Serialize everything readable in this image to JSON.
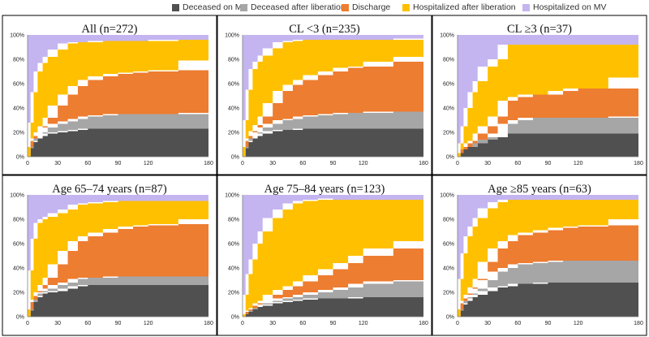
{
  "legend": {
    "items": [
      {
        "label": "Deceased on MV",
        "color": "#505050"
      },
      {
        "label": "Deceased after liberation",
        "color": "#a6a6a6"
      },
      {
        "label": "Discharge",
        "color": "#ed7d31"
      },
      {
        "label": "Hospitalized after liberation",
        "color": "#ffc000"
      },
      {
        "label": "Hospitalized on MV",
        "color": "#c4b5f0"
      }
    ]
  },
  "chart_data": [
    {
      "type": "area",
      "stacked": true,
      "title": "All (n=272)",
      "x": [
        0,
        3,
        6,
        10,
        15,
        20,
        30,
        40,
        50,
        60,
        75,
        90,
        105,
        120,
        150,
        180
      ],
      "xticks": [
        0,
        30,
        60,
        90,
        120,
        180
      ],
      "yticks": [
        "0%",
        "20%",
        "40%",
        "60%",
        "80%",
        "100%"
      ],
      "xlim": [
        0,
        180
      ],
      "ylim": [
        0,
        100
      ],
      "series": [
        {
          "name": "Deceased on MV",
          "values": [
            0,
            7,
            12,
            15,
            17,
            19,
            20,
            21,
            22,
            23,
            23,
            23,
            23,
            23,
            23,
            23
          ]
        },
        {
          "name": "Deceased after liberation",
          "values": [
            0,
            0,
            1,
            2,
            3,
            5,
            7,
            8,
            9,
            10,
            11,
            12,
            12,
            12,
            12,
            13
          ]
        },
        {
          "name": "Discharge",
          "values": [
            0,
            1,
            2,
            3,
            5,
            8,
            15,
            22,
            27,
            30,
            32,
            33,
            34,
            35,
            36,
            43
          ]
        },
        {
          "name": "Hospitalized after liberation",
          "values": [
            0,
            20,
            38,
            50,
            52,
            50,
            46,
            42,
            36,
            31,
            29,
            27,
            26,
            25,
            25,
            17
          ]
        },
        {
          "name": "Hospitalized on MV",
          "values": [
            100,
            72,
            47,
            30,
            23,
            18,
            12,
            7,
            6,
            6,
            5,
            5,
            5,
            5,
            4,
            4
          ]
        }
      ]
    },
    {
      "type": "area",
      "stacked": true,
      "title": "CL <3 (n=235)",
      "x": [
        0,
        3,
        6,
        10,
        15,
        20,
        30,
        40,
        50,
        60,
        75,
        90,
        105,
        120,
        150,
        180
      ],
      "xticks": [
        0,
        30,
        60,
        90,
        120,
        180
      ],
      "yticks": [
        "0%",
        "20%",
        "40%",
        "60%",
        "80%",
        "100%"
      ],
      "xlim": [
        0,
        180
      ],
      "ylim": [
        0,
        100
      ],
      "series": [
        {
          "name": "Deceased on MV",
          "values": [
            0,
            7,
            12,
            15,
            17,
            19,
            21,
            22,
            22,
            23,
            23,
            23,
            23,
            23,
            23,
            23
          ]
        },
        {
          "name": "Deceased after liberation",
          "values": [
            0,
            0,
            1,
            2,
            3,
            5,
            6,
            8,
            9,
            10,
            11,
            12,
            13,
            13,
            14,
            14
          ]
        },
        {
          "name": "Discharge",
          "values": [
            0,
            1,
            2,
            4,
            6,
            9,
            17,
            24,
            28,
            30,
            33,
            35,
            37,
            38,
            41,
            45
          ]
        },
        {
          "name": "Hospitalized after liberation",
          "values": [
            0,
            22,
            40,
            51,
            52,
            50,
            45,
            40,
            36,
            33,
            29,
            26,
            23,
            22,
            18,
            15
          ]
        },
        {
          "name": "Hospitalized on MV",
          "values": [
            100,
            70,
            45,
            28,
            22,
            17,
            11,
            6,
            5,
            4,
            4,
            4,
            4,
            4,
            4,
            3
          ]
        }
      ]
    },
    {
      "type": "area",
      "stacked": true,
      "title": "CL ≥3 (n=37)",
      "x": [
        0,
        3,
        6,
        10,
        15,
        20,
        30,
        40,
        50,
        60,
        75,
        90,
        105,
        120,
        150,
        180
      ],
      "xticks": [
        0,
        30,
        60,
        90,
        120,
        180
      ],
      "yticks": [
        "0%",
        "20%",
        "40%",
        "60%",
        "80%",
        "100%"
      ],
      "xlim": [
        0,
        180
      ],
      "ylim": [
        0,
        100
      ],
      "series": [
        {
          "name": "Deceased on MV",
          "values": [
            0,
            3,
            6,
            8,
            8,
            11,
            14,
            16,
            19,
            19,
            19,
            19,
            19,
            19,
            19,
            19
          ]
        },
        {
          "name": "Deceased after liberation",
          "values": [
            0,
            0,
            0,
            0,
            0,
            0,
            0,
            3,
            8,
            11,
            13,
            13,
            13,
            13,
            13,
            14
          ]
        },
        {
          "name": "Discharge",
          "values": [
            0,
            0,
            0,
            3,
            5,
            8,
            11,
            14,
            19,
            19,
            19,
            19,
            22,
            24,
            24,
            32
          ]
        },
        {
          "name": "Hospitalized after liberation",
          "values": [
            0,
            8,
            19,
            29,
            40,
            43,
            49,
            47,
            46,
            43,
            41,
            41,
            38,
            36,
            36,
            27
          ]
        },
        {
          "name": "Hospitalized on MV",
          "values": [
            100,
            89,
            75,
            60,
            47,
            38,
            26,
            20,
            8,
            8,
            8,
            8,
            8,
            8,
            8,
            8
          ]
        }
      ]
    },
    {
      "type": "area",
      "stacked": true,
      "title": "Age 65–74 years (n=87)",
      "x": [
        0,
        3,
        6,
        10,
        15,
        20,
        30,
        40,
        50,
        60,
        75,
        90,
        105,
        120,
        150,
        180
      ],
      "xticks": [
        0,
        30,
        60,
        90,
        120,
        180
      ],
      "yticks": [
        "0%",
        "20%",
        "40%",
        "60%",
        "80%",
        "100%"
      ],
      "xlim": [
        0,
        180
      ],
      "ylim": [
        0,
        100
      ],
      "series": [
        {
          "name": "Deceased on MV",
          "values": [
            0,
            5,
            12,
            16,
            19,
            20,
            21,
            23,
            25,
            26,
            26,
            26,
            26,
            26,
            26,
            26
          ]
        },
        {
          "name": "Deceased after liberation",
          "values": [
            0,
            0,
            0,
            1,
            2,
            3,
            5,
            5,
            6,
            6,
            6,
            7,
            7,
            7,
            7,
            7
          ]
        },
        {
          "name": "Discharge",
          "values": [
            0,
            1,
            2,
            3,
            5,
            9,
            17,
            26,
            31,
            34,
            37,
            39,
            41,
            42,
            43,
            47
          ]
        },
        {
          "name": "Hospitalized after liberation",
          "values": [
            0,
            32,
            50,
            57,
            54,
            50,
            42,
            34,
            30,
            27,
            25,
            23,
            21,
            20,
            19,
            15
          ]
        },
        {
          "name": "Hospitalized on MV",
          "values": [
            100,
            62,
            36,
            23,
            20,
            18,
            15,
            12,
            8,
            7,
            6,
            5,
            5,
            5,
            5,
            5
          ]
        }
      ]
    },
    {
      "type": "area",
      "stacked": true,
      "title": "Age 75–84 years (n=123)",
      "x": [
        0,
        3,
        6,
        10,
        15,
        20,
        30,
        40,
        50,
        60,
        75,
        90,
        105,
        120,
        150,
        180
      ],
      "xticks": [
        0,
        30,
        60,
        90,
        120,
        180
      ],
      "yticks": [
        "0%",
        "20%",
        "40%",
        "60%",
        "80%",
        "100%"
      ],
      "xlim": [
        0,
        180
      ],
      "ylim": [
        0,
        100
      ],
      "series": [
        {
          "name": "Deceased on MV",
          "values": [
            0,
            2,
            4,
            6,
            8,
            9,
            11,
            12,
            13,
            14,
            15,
            15,
            15,
            16,
            16,
            16
          ]
        },
        {
          "name": "Deceased after liberation",
          "values": [
            0,
            0,
            0,
            0,
            1,
            1,
            2,
            3,
            3,
            4,
            5,
            7,
            9,
            11,
            13,
            14
          ]
        },
        {
          "name": "Discharge",
          "values": [
            0,
            0,
            1,
            1,
            2,
            3,
            5,
            7,
            9,
            11,
            14,
            17,
            20,
            23,
            27,
            32
          ]
        },
        {
          "name": "Hospitalized after liberation",
          "values": [
            0,
            16,
            30,
            40,
            49,
            57,
            63,
            66,
            68,
            66,
            62,
            58,
            52,
            46,
            40,
            34
          ]
        },
        {
          "name": "Hospitalized on MV",
          "values": [
            100,
            82,
            65,
            53,
            40,
            30,
            19,
            12,
            7,
            5,
            4,
            3,
            4,
            4,
            4,
            4
          ]
        }
      ]
    },
    {
      "type": "area",
      "stacked": true,
      "title": "Age ≥85 years (n=63)",
      "x": [
        0,
        3,
        6,
        10,
        15,
        20,
        30,
        40,
        50,
        60,
        75,
        90,
        105,
        120,
        150,
        180
      ],
      "xticks": [
        0,
        30,
        60,
        90,
        120,
        180
      ],
      "yticks": [
        "0%",
        "20%",
        "40%",
        "60%",
        "80%",
        "100%"
      ],
      "xlim": [
        0,
        180
      ],
      "ylim": [
        0,
        100
      ],
      "series": [
        {
          "name": "Deceased on MV",
          "values": [
            0,
            5,
            10,
            13,
            16,
            18,
            21,
            24,
            25,
            27,
            27,
            28,
            28,
            28,
            28,
            28
          ]
        },
        {
          "name": "Deceased after liberation",
          "values": [
            0,
            0,
            1,
            2,
            3,
            5,
            9,
            13,
            15,
            16,
            17,
            17,
            18,
            18,
            18,
            18
          ]
        },
        {
          "name": "Discharge",
          "values": [
            0,
            1,
            2,
            3,
            5,
            8,
            15,
            19,
            22,
            24,
            25,
            26,
            27,
            28,
            29,
            34
          ]
        },
        {
          "name": "Hospitalized after liberation",
          "values": [
            0,
            25,
            39,
            48,
            50,
            50,
            44,
            38,
            34,
            29,
            27,
            25,
            23,
            22,
            21,
            16
          ]
        },
        {
          "name": "Hospitalized on MV",
          "values": [
            100,
            69,
            48,
            34,
            26,
            19,
            11,
            6,
            4,
            4,
            4,
            4,
            4,
            4,
            4,
            4
          ]
        }
      ]
    }
  ]
}
